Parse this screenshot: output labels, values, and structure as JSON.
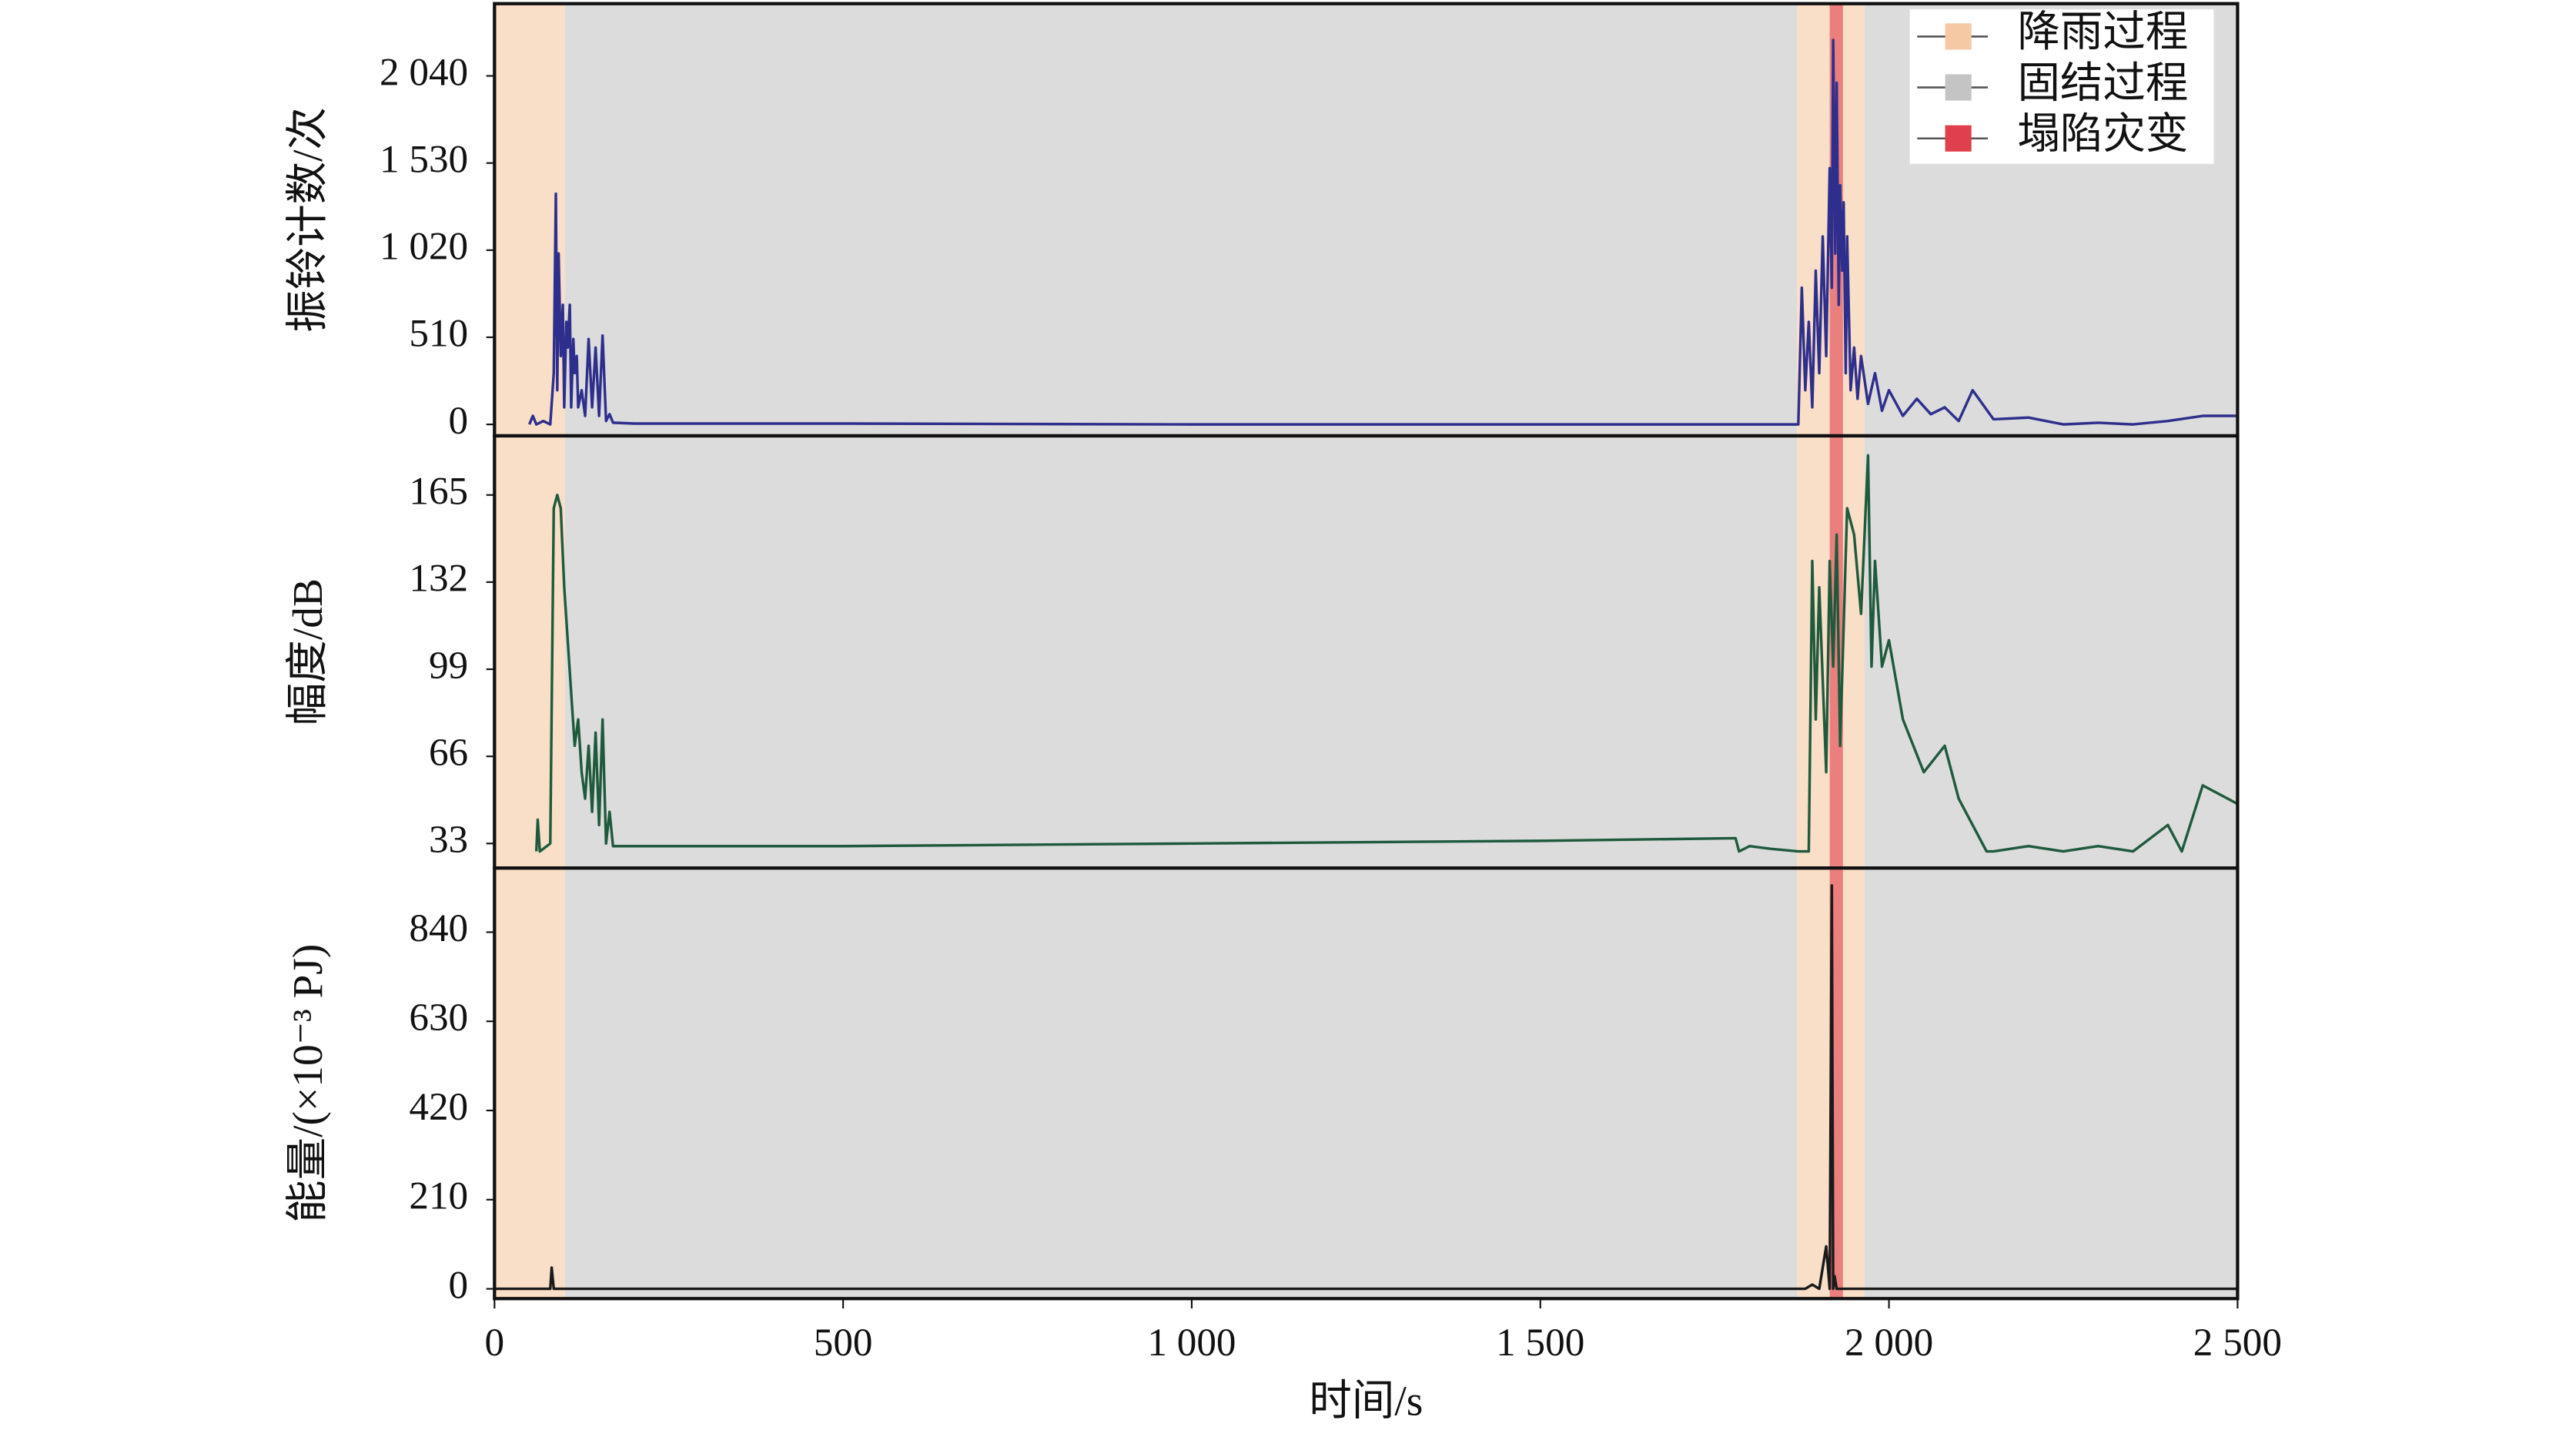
{
  "chart_data": [
    {
      "type": "line",
      "ylabel": "振铃计数/次",
      "color": "#2e2f8c",
      "xlim": [
        0,
        2500
      ],
      "ylim": [
        -67,
        2463
      ],
      "yticks": [
        0,
        510,
        {
          "value": 1020,
          "label": "1 020"
        },
        {
          "value": 1530,
          "label": "1 530"
        },
        {
          "value": 2040,
          "label": "2 040"
        }
      ],
      "bands": [
        {
          "name": "降雨过程",
          "color": "#f5c9a3",
          "ranges": [
            [
              0,
              101
            ],
            [
              1868,
              1965
            ]
          ]
        },
        {
          "name": "固结过程",
          "color": "#c4c4c4",
          "ranges": [
            [
              101,
              1868
            ],
            [
              1965,
              2500
            ]
          ]
        },
        {
          "name": "塌陷灾变",
          "color": "#e0404d",
          "ranges": [
            [
              1915,
              1934
            ]
          ]
        }
      ],
      "x": [
        50,
        55,
        60,
        70,
        80,
        85,
        88,
        90,
        92,
        95,
        98,
        100,
        103,
        105,
        108,
        110,
        113,
        115,
        118,
        120,
        125,
        130,
        135,
        140,
        145,
        150,
        155,
        160,
        165,
        170,
        200,
        500,
        1000,
        1500,
        1870,
        1875,
        1880,
        1885,
        1890,
        1895,
        1900,
        1905,
        1910,
        1915,
        1918,
        1920,
        1923,
        1925,
        1928,
        1930,
        1933,
        1935,
        1938,
        1940,
        1945,
        1950,
        1955,
        1960,
        1970,
        1980,
        1990,
        2000,
        2020,
        2040,
        2060,
        2080,
        2100,
        2120,
        2150,
        2200,
        2250,
        2300,
        2350,
        2400,
        2450,
        2500
      ],
      "values": [
        0,
        50,
        0,
        20,
        0,
        300,
        1350,
        200,
        1000,
        400,
        700,
        100,
        600,
        450,
        700,
        100,
        500,
        300,
        400,
        100,
        200,
        50,
        500,
        100,
        450,
        50,
        520,
        20,
        60,
        10,
        5,
        5,
        0,
        0,
        0,
        800,
        200,
        600,
        100,
        900,
        300,
        1100,
        400,
        1500,
        800,
        2250,
        1000,
        2000,
        700,
        1400,
        900,
        1300,
        300,
        1100,
        200,
        450,
        150,
        400,
        120,
        300,
        80,
        200,
        50,
        150,
        60,
        100,
        20,
        200,
        30,
        40,
        0,
        10,
        0,
        20,
        50,
        50
      ]
    },
    {
      "type": "line",
      "ylabel": "幅度/dB",
      "color": "#1f5a3c",
      "xlim": [
        0,
        2500
      ],
      "ylim": [
        23.7,
        187.4
      ],
      "yticks": [
        33,
        66,
        99,
        132,
        165
      ],
      "x": [
        60,
        62,
        65,
        80,
        85,
        90,
        95,
        100,
        105,
        110,
        115,
        120,
        125,
        130,
        135,
        140,
        145,
        150,
        155,
        160,
        165,
        170,
        500,
        1000,
        1500,
        1780,
        1785,
        1800,
        1830,
        1870,
        1885,
        1890,
        1895,
        1900,
        1910,
        1915,
        1920,
        1925,
        1930,
        1940,
        1950,
        1960,
        1970,
        1975,
        1980,
        1990,
        2000,
        2020,
        2050,
        2080,
        2100,
        2120,
        2140,
        2150,
        2200,
        2250,
        2300,
        2350,
        2400,
        2420,
        2450,
        2500
      ],
      "values": [
        30,
        42,
        30,
        33,
        160,
        165,
        160,
        130,
        110,
        90,
        70,
        80,
        60,
        50,
        70,
        45,
        75,
        40,
        80,
        33,
        45,
        32,
        32,
        33,
        34,
        35,
        30,
        32,
        31,
        30,
        30,
        140,
        80,
        130,
        60,
        140,
        100,
        150,
        70,
        160,
        150,
        120,
        180,
        100,
        140,
        100,
        110,
        80,
        60,
        70,
        50,
        40,
        30,
        30,
        32,
        30,
        32,
        30,
        40,
        30,
        55,
        48
      ]
    },
    {
      "type": "line",
      "ylabel": "能量/(×10⁻³ PJ)",
      "color": "#1a1a1a",
      "xlim": [
        0,
        2500
      ],
      "ylim": [
        -23,
        991
      ],
      "yticks": [
        0,
        210,
        420,
        630,
        840
      ],
      "xlabel": "时间/s",
      "xticks": [
        0,
        500,
        {
          "value": 1000,
          "label": "1 000"
        },
        {
          "value": 1500,
          "label": "1 500"
        },
        {
          "value": 2000,
          "label": "2 000"
        },
        {
          "value": 2500,
          "label": "2 500"
        }
      ],
      "x": [
        0,
        80,
        82,
        85,
        90,
        500,
        1000,
        1500,
        1875,
        1880,
        1890,
        1900,
        1910,
        1915,
        1918,
        1920,
        1922,
        1925,
        1930,
        2000,
        2500
      ],
      "values": [
        0,
        0,
        50,
        0,
        0,
        0,
        0,
        0,
        0,
        0,
        10,
        0,
        100,
        0,
        950,
        0,
        30,
        0,
        0,
        0,
        0
      ]
    }
  ]
}
